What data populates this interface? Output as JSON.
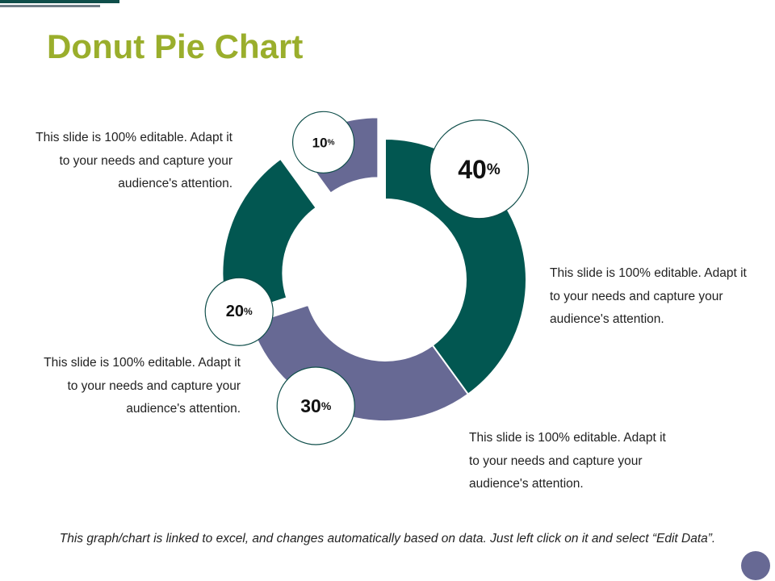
{
  "title": "Donut Pie Chart",
  "chart_data": {
    "type": "pie",
    "variant": "donut",
    "values": [
      40,
      30,
      20,
      10
    ],
    "labels": [
      "40",
      "30",
      "20",
      "10"
    ],
    "unit": "%",
    "colors": [
      "#025751",
      "#676994",
      "#025751",
      "#676994"
    ],
    "exploded": [
      false,
      false,
      true,
      true
    ]
  },
  "notes": [
    "This slide is 100% editable. Adapt it to your needs and capture your audience's attention.",
    "This slide is 100% editable. Adapt it to your needs and capture your audience's attention.",
    "This slide is 100% editable. Adapt it to your needs and capture your audience's attention.",
    "This slide is 100% editable. Adapt it to your needs and capture your audience's attention."
  ],
  "footer": "This graph/chart is linked to excel, and changes automatically based on data. Just left click on it and select “Edit Data”.",
  "colors": {
    "title": "#9aae2c",
    "bubble_border": "#0f4e4a",
    "corner_dot": "#676994"
  }
}
